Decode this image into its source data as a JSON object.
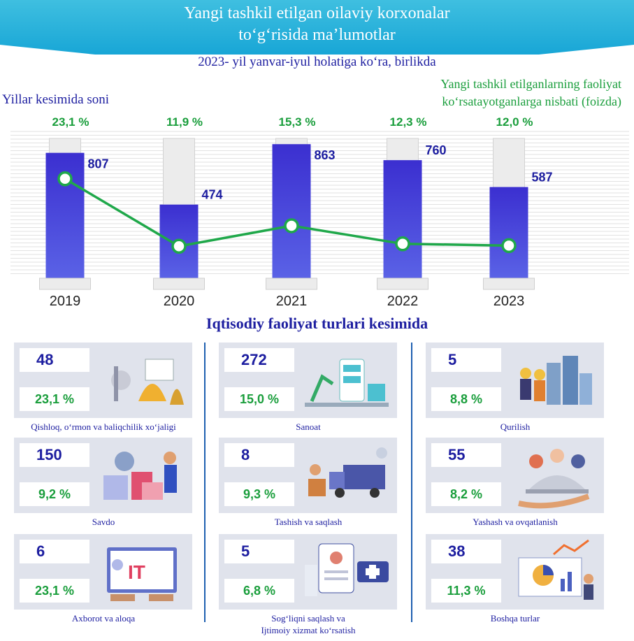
{
  "header": {
    "title_line1": "Yangi tashkil etilgan oilaviy korxonalar",
    "title_line2": "to‘g‘risida ma’lumotlar"
  },
  "subtitle": "2023- yil yanvar-iyul holatiga ko‘ra, birlikda",
  "count_label": "Yillar kesimida soni",
  "ratio_label_line1": "Yangi tashkil etilganlarning faoliyat",
  "ratio_label_line2": "ko‘rsatayotganlarga nisbati (foizda)",
  "chart_data": {
    "type": "bar",
    "categories": [
      "2019",
      "2020",
      "2021",
      "2022",
      "2023"
    ],
    "series": [
      {
        "values": [
          807,
          474,
          863,
          760,
          587
        ]
      },
      {
        "values": [
          23.1,
          11.9,
          15.3,
          12.3,
          12.0
        ]
      }
    ],
    "count_labels": [
      "807",
      "474",
      "863",
      "760",
      "587"
    ],
    "percent_labels": [
      "23,1 %",
      "11,9 %",
      "15,3 %",
      "12,3 %",
      "12,0 %"
    ],
    "colors": {
      "bar": "#3b2fd0",
      "line": "#1fa84a",
      "pct_text": "#1a9e3c",
      "count_text": "#1d1ea0"
    }
  },
  "section_title": "Iqtisodiy faoliyat turlari kesimida",
  "sectors": [
    {
      "count": "48",
      "percent": "23,1 %",
      "label": "Qishloq, o‘rmon va baliqchilik xo‘jaligi",
      "icon": "agriculture-icon"
    },
    {
      "count": "272",
      "percent": "15,0 %",
      "label": "Sanoat",
      "icon": "factory-robot-icon"
    },
    {
      "count": "5",
      "percent": "8,8 %",
      "label": "Qurilish",
      "icon": "construction-icon"
    },
    {
      "count": "150",
      "percent": "9,2 %",
      "label": "Savdo",
      "icon": "shopping-icon"
    },
    {
      "count": "8",
      "percent": "9,3 %",
      "label": "Tashish va saqlash",
      "icon": "delivery-truck-icon"
    },
    {
      "count": "55",
      "percent": "8,2 %",
      "label": "Yashash va ovqatlanish",
      "icon": "restaurant-service-icon"
    },
    {
      "count": "6",
      "percent": "23,1 %",
      "label": "Axborot va aloqa",
      "icon": "it-monitor-icon"
    },
    {
      "count": "5",
      "percent": "6,8 %",
      "label": "Sog‘liqni saqlash va\nIjtimoiy xizmat ko‘rsatish",
      "icon": "healthcare-icon"
    },
    {
      "count": "38",
      "percent": "11,3 %",
      "label": "Boshqa turlar",
      "icon": "analytics-board-icon"
    }
  ]
}
